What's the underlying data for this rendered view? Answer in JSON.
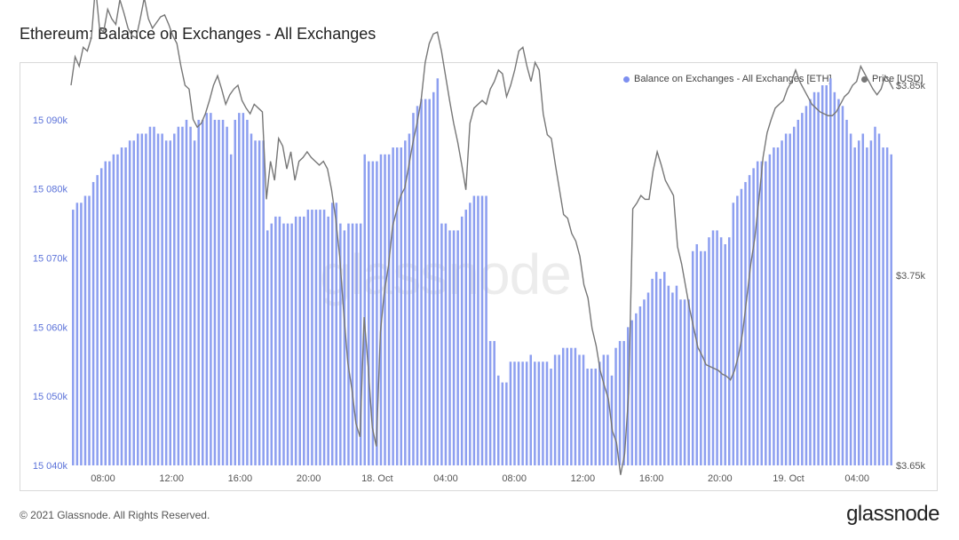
{
  "title": "Ethereum: Balance on Exchanges - All Exchanges",
  "footer": "© 2021 Glassnode. All Rights Reserved.",
  "logo_text": "glassnode",
  "watermark": "glassnode",
  "colors": {
    "bars": "#8d9ff0",
    "price": "#777777"
  },
  "chart_data": {
    "type": "bar",
    "x_labels": [
      "08:00",
      "12:00",
      "16:00",
      "20:00",
      "18. Oct",
      "04:00",
      "08:00",
      "12:00",
      "16:00",
      "20:00",
      "19. Oct",
      "04:00"
    ],
    "legend_position": "top-right",
    "grid": false,
    "series": [
      {
        "name": "Balance on Exchanges - All Exchanges [ETH]",
        "type": "bar",
        "axis": "left",
        "ylim": [
          15040,
          15095
        ],
        "unit": "k",
        "tick_labels": [
          "15 040k",
          "15 050k",
          "15 060k",
          "15 070k",
          "15 080k",
          "15 090k"
        ],
        "tick_values": [
          15040,
          15050,
          15060,
          15070,
          15080,
          15090
        ],
        "values": [
          15077,
          15078,
          15078,
          15079,
          15079,
          15081,
          15082,
          15083,
          15084,
          15084,
          15085,
          15085,
          15086,
          15086,
          15087,
          15087,
          15088,
          15088,
          15088,
          15089,
          15089,
          15088,
          15088,
          15087,
          15087,
          15088,
          15089,
          15089,
          15090,
          15089,
          15087,
          15090,
          15090,
          15091,
          15091,
          15090,
          15090,
          15090,
          15089,
          15085,
          15090,
          15091,
          15091,
          15090,
          15088,
          15087,
          15087,
          15087,
          15074,
          15075,
          15076,
          15076,
          15075,
          15075,
          15075,
          15076,
          15076,
          15076,
          15077,
          15077,
          15077,
          15077,
          15077,
          15076,
          15078,
          15078,
          15075,
          15074,
          15075,
          15075,
          15075,
          15075,
          15085,
          15084,
          15084,
          15084,
          15085,
          15085,
          15085,
          15086,
          15086,
          15086,
          15087,
          15088,
          15091,
          15092,
          15093,
          15093,
          15093,
          15094,
          15096,
          15075,
          15075,
          15074,
          15074,
          15074,
          15076,
          15077,
          15078,
          15079,
          15079,
          15079,
          15079,
          15058,
          15058,
          15053,
          15052,
          15052,
          15055,
          15055,
          15055,
          15055,
          15055,
          15056,
          15055,
          15055,
          15055,
          15055,
          15054,
          15056,
          15056,
          15057,
          15057,
          15057,
          15057,
          15056,
          15056,
          15054,
          15054,
          15054,
          15055,
          15056,
          15056,
          15053,
          15057,
          15058,
          15058,
          15060,
          15061,
          15062,
          15063,
          15064,
          15065,
          15067,
          15068,
          15067,
          15068,
          15066,
          15065,
          15066,
          15064,
          15064,
          15064,
          15071,
          15072,
          15071,
          15071,
          15073,
          15074,
          15074,
          15073,
          15072,
          15073,
          15078,
          15079,
          15080,
          15081,
          15082,
          15083,
          15084,
          15084,
          15084,
          15085,
          15086,
          15086,
          15087,
          15088,
          15088,
          15089,
          15090,
          15091,
          15092,
          15093,
          15094,
          15094,
          15095,
          15095,
          15096,
          15094,
          15093,
          15092,
          15090,
          15088,
          15086,
          15087,
          15088,
          15086,
          15087,
          15089,
          15088,
          15086,
          15086,
          15085
        ]
      },
      {
        "name": "Price [USD]",
        "type": "line",
        "axis": "right",
        "ylim": [
          3650,
          3850
        ],
        "tick_labels": [
          "$3.65k",
          "$3.75k",
          "$3.85k"
        ],
        "tick_values": [
          3650,
          3750,
          3850
        ],
        "values": [
          3850,
          3865,
          3860,
          3870,
          3868,
          3875,
          3902,
          3880,
          3878,
          3890,
          3885,
          3882,
          3895,
          3888,
          3880,
          3876,
          3875,
          3885,
          3896,
          3885,
          3880,
          3883,
          3886,
          3887,
          3882,
          3876,
          3872,
          3860,
          3850,
          3848,
          3832,
          3828,
          3830,
          3835,
          3842,
          3850,
          3855,
          3848,
          3840,
          3845,
          3848,
          3850,
          3842,
          3838,
          3835,
          3840,
          3838,
          3836,
          3790,
          3810,
          3800,
          3822,
          3818,
          3806,
          3815,
          3800,
          3810,
          3812,
          3815,
          3812,
          3810,
          3808,
          3810,
          3806,
          3795,
          3780,
          3760,
          3730,
          3704,
          3690,
          3672,
          3665,
          3728,
          3702,
          3670,
          3660,
          3720,
          3742,
          3755,
          3776,
          3784,
          3792,
          3796,
          3808,
          3820,
          3830,
          3842,
          3862,
          3872,
          3877,
          3878,
          3868,
          3855,
          3842,
          3830,
          3820,
          3808,
          3795,
          3830,
          3838,
          3840,
          3842,
          3840,
          3848,
          3852,
          3858,
          3856,
          3844,
          3850,
          3858,
          3868,
          3870,
          3860,
          3852,
          3862,
          3858,
          3835,
          3824,
          3822,
          3808,
          3795,
          3782,
          3780,
          3772,
          3768,
          3760,
          3745,
          3738,
          3722,
          3713,
          3700,
          3692,
          3685,
          3668,
          3662,
          3645,
          3656,
          3688,
          3785,
          3788,
          3792,
          3790,
          3790,
          3805,
          3815,
          3808,
          3800,
          3796,
          3792,
          3765,
          3756,
          3744,
          3732,
          3722,
          3712,
          3708,
          3703,
          3702,
          3701,
          3700,
          3698,
          3697,
          3695,
          3700,
          3708,
          3720,
          3738,
          3756,
          3770,
          3790,
          3812,
          3825,
          3832,
          3838,
          3840,
          3842,
          3848,
          3852,
          3858,
          3852,
          3848,
          3844,
          3840,
          3838,
          3836,
          3835,
          3834,
          3834,
          3836,
          3840,
          3844,
          3846,
          3850,
          3852,
          3860,
          3856,
          3852,
          3848,
          3845,
          3848,
          3855,
          3852,
          3848
        ]
      }
    ]
  }
}
